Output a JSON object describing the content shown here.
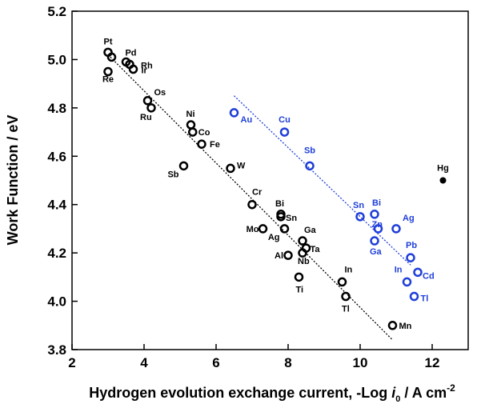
{
  "chart_data": {
    "type": "scatter",
    "xlabel": "Hydrogen evolution exchange current, -Log i0 / A cm-2",
    "xlabel_parts": {
      "prefix": "Hydrogen evolution exchange current, -Log ",
      "var": "i",
      "sub": "0",
      "suffix": " / A cm",
      "sup": "-2"
    },
    "ylabel": "Work Function / eV",
    "xlim": [
      2,
      13
    ],
    "ylim": [
      3.8,
      5.2
    ],
    "xticks": [
      "2",
      "4",
      "6",
      "8",
      "10",
      "12"
    ],
    "yticks": [
      "3.8",
      "4.0",
      "4.2",
      "4.4",
      "4.6",
      "4.8",
      "5.0",
      "5.2"
    ],
    "grid": false,
    "legend": "none",
    "series": [
      {
        "color": "#000000",
        "marker": "open-circle",
        "points": [
          {
            "label": "Pt",
            "x": 3.0,
            "y": 5.03
          },
          {
            "label": "",
            "x": 3.1,
            "y": 5.01
          },
          {
            "label": "Pd",
            "x": 3.5,
            "y": 4.99
          },
          {
            "label": "Rh",
            "x": 3.6,
            "y": 4.98
          },
          {
            "label": "Ir",
            "x": 3.7,
            "y": 4.96
          },
          {
            "label": "Re",
            "x": 3.0,
            "y": 4.95
          },
          {
            "label": "Os",
            "x": 4.1,
            "y": 4.83
          },
          {
            "label": "Ru",
            "x": 4.2,
            "y": 4.8
          },
          {
            "label": "Ni",
            "x": 5.3,
            "y": 4.73
          },
          {
            "label": "Co",
            "x": 5.35,
            "y": 4.7
          },
          {
            "label": "Fe",
            "x": 5.6,
            "y": 4.65
          },
          {
            "label": "Sb",
            "x": 5.1,
            "y": 4.56
          },
          {
            "label": "W",
            "x": 6.4,
            "y": 4.55
          },
          {
            "label": "Cr",
            "x": 7.0,
            "y": 4.4
          },
          {
            "label": "Bi",
            "x": 7.8,
            "y": 4.36
          },
          {
            "label": "Sn",
            "x": 7.8,
            "y": 4.35
          },
          {
            "label": "Mo",
            "x": 7.3,
            "y": 4.3
          },
          {
            "label": "Ag",
            "x": 7.9,
            "y": 4.3
          },
          {
            "label": "Ga",
            "x": 8.4,
            "y": 4.25
          },
          {
            "label": "Ta",
            "x": 8.5,
            "y": 4.22
          },
          {
            "label": "Al",
            "x": 8.0,
            "y": 4.19
          },
          {
            "label": "Nb",
            "x": 8.4,
            "y": 4.2
          },
          {
            "label": "Ti",
            "x": 8.3,
            "y": 4.1
          },
          {
            "label": "In",
            "x": 9.5,
            "y": 4.08
          },
          {
            "label": "Tl",
            "x": 9.6,
            "y": 4.02
          },
          {
            "label": "Mn",
            "x": 10.9,
            "y": 3.9
          }
        ],
        "fit_line": {
          "x": [
            3.0,
            10.9
          ],
          "y": [
            5.02,
            3.84
          ]
        }
      },
      {
        "color": "#1f3fd8",
        "marker": "open-circle",
        "points": [
          {
            "label": "Au",
            "x": 6.5,
            "y": 4.78
          },
          {
            "label": "Cu",
            "x": 7.9,
            "y": 4.7
          },
          {
            "label": "Sb",
            "x": 8.6,
            "y": 4.56
          },
          {
            "label": "Sn",
            "x": 10.0,
            "y": 4.35
          },
          {
            "label": "Bi",
            "x": 10.4,
            "y": 4.36
          },
          {
            "label": "Zn",
            "x": 10.5,
            "y": 4.3
          },
          {
            "label": "Ag",
            "x": 11.0,
            "y": 4.3
          },
          {
            "label": "Ga",
            "x": 10.4,
            "y": 4.25
          },
          {
            "label": "Pb",
            "x": 11.4,
            "y": 4.18
          },
          {
            "label": "In",
            "x": 11.3,
            "y": 4.08
          },
          {
            "label": "Cd",
            "x": 11.6,
            "y": 4.12
          },
          {
            "label": "Tl",
            "x": 11.5,
            "y": 4.02
          }
        ],
        "fit_line": {
          "x": [
            6.5,
            11.4
          ],
          "y": [
            4.85,
            4.15
          ]
        }
      },
      {
        "color": "#000000",
        "marker": "filled-circle",
        "points": [
          {
            "label": "Hg",
            "x": 12.3,
            "y": 4.5
          }
        ]
      }
    ]
  }
}
